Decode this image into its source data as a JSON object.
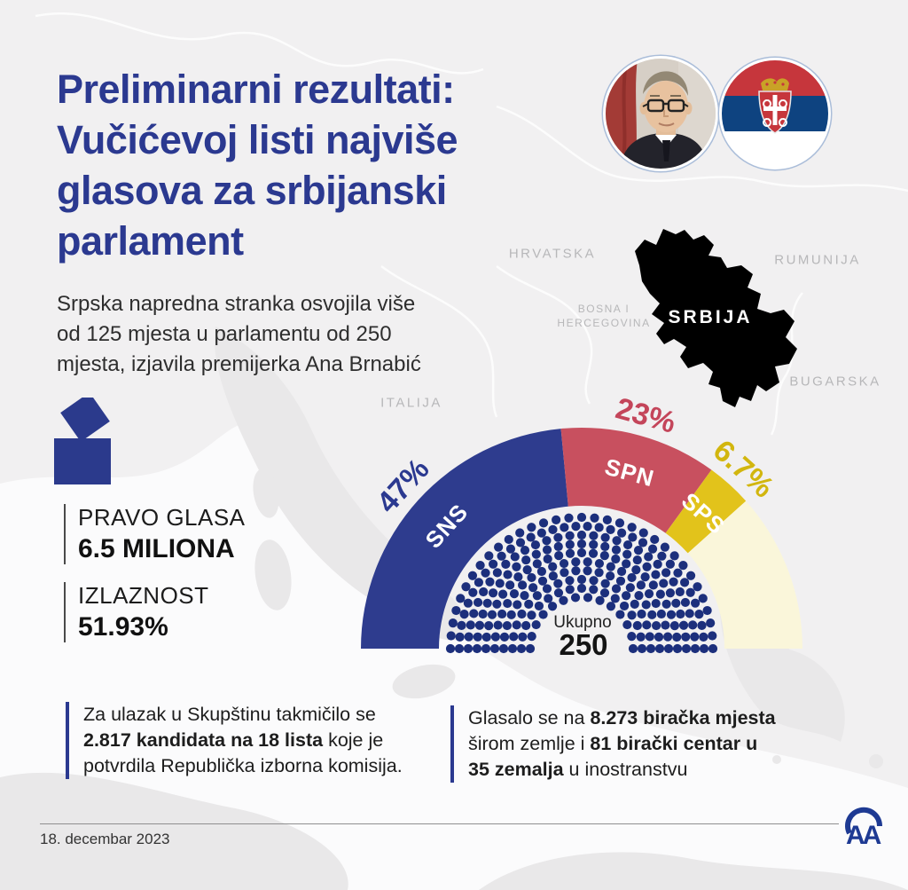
{
  "header": {
    "title": "Preliminarni rezultati:\nVučićevoj listi najviše\nglasova za srbijanski\nparlament",
    "subtitle": "Srpska napredna stranka osvojila više\nod 125 mjesta u parlamentu od 250\nmjesta, izjavila premijerka Ana Brnabić"
  },
  "map": {
    "labels": {
      "hrvatska": "HRVATSKA",
      "bosna": "BOSNA I\nHERCEGOVINA",
      "rumunija": "RUMUNIJA",
      "bugarska": "BUGARSKA",
      "italija": "ITALIJA",
      "srbija": "SRBIJA"
    },
    "srbija_color": "#C8505F"
  },
  "stats": {
    "eligible": {
      "label": "PRAVO GLASA",
      "value": "6.5 MILIONA"
    },
    "turnout": {
      "label": "IZLAZNOST",
      "value": "51.93%"
    }
  },
  "chart_data": {
    "type": "half-donut parliament (semicircle, 180° span)",
    "title_center": {
      "label": "Ukupno",
      "value": "250"
    },
    "total_seats": 250,
    "series": [
      {
        "name": "SNS",
        "pct": 47,
        "pct_label": "47%",
        "color": "#2E3C8E",
        "label_color": "#2B3990"
      },
      {
        "name": "SPN",
        "pct": 23,
        "pct_label": "23%",
        "color": "#C8505F",
        "label_color": "#C4455A"
      },
      {
        "name": "SPS",
        "pct": 6.7,
        "pct_label": "6.7%",
        "color": "#E2C31B",
        "label_color": "#D2B60E"
      },
      {
        "name": "",
        "pct": 23.3,
        "pct_label": "",
        "color": "#FAF6DA",
        "label_color": ""
      }
    ],
    "seat_dot_color": "#1C2F7C",
    "legend_position": "on-wedges"
  },
  "notes": [
    {
      "lines": [
        [
          {
            "t": "Za ulazak u Skupštinu takmičilo se",
            "b": false
          }
        ],
        [
          {
            "t": "2.817 kandidata na 18 lista",
            "b": true
          },
          {
            "t": " koje je",
            "b": false
          }
        ],
        [
          {
            "t": "potvrdila Republička izborna komisija.",
            "b": false
          }
        ]
      ]
    },
    {
      "lines": [
        [
          {
            "t": "Glasalo se na ",
            "b": false
          },
          {
            "t": "8.273 biračka mjesta",
            "b": true
          }
        ],
        [
          {
            "t": "širom zemlje i ",
            "b": false
          },
          {
            "t": "81 birački centar u",
            "b": true
          }
        ],
        [
          {
            "t": "35 zemalja",
            "b": true
          },
          {
            "t": " u inostranstvu",
            "b": false
          }
        ]
      ]
    }
  ],
  "footer": {
    "date": "18. decembar 2023",
    "logo": "AA"
  }
}
